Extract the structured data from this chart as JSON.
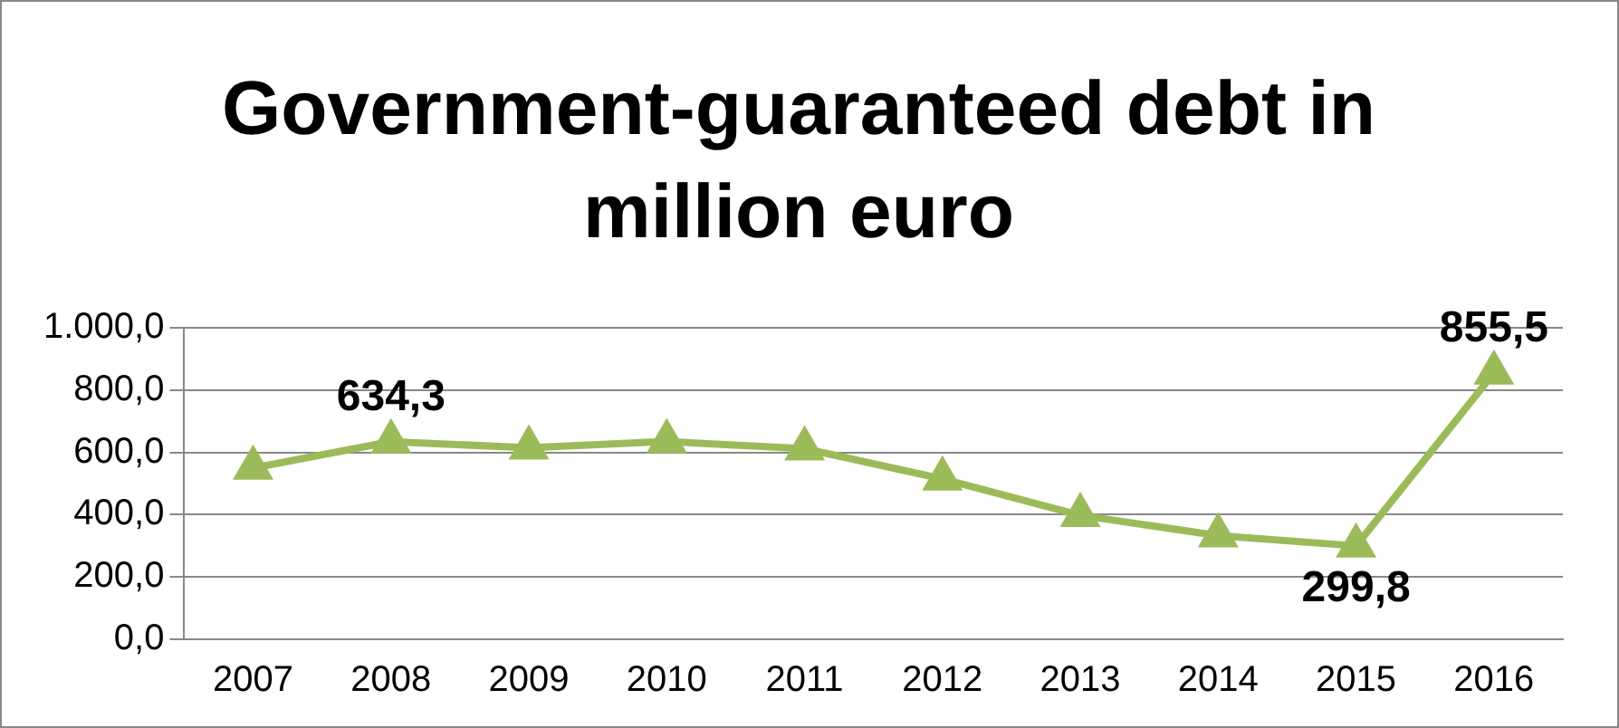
{
  "chart_data": {
    "type": "line",
    "title": "Government-guaranteed debt in million euro",
    "categories": [
      "2007",
      "2008",
      "2009",
      "2010",
      "2011",
      "2012",
      "2013",
      "2014",
      "2015",
      "2016"
    ],
    "series": [
      {
        "color": "#9bbb59",
        "values": [
          550,
          634.3,
          615,
          635,
          612,
          515,
          398,
          333,
          299.8,
          855.5
        ],
        "value_labels": [
          null,
          "634,3",
          null,
          null,
          null,
          null,
          null,
          null,
          "299,8",
          "855,5"
        ]
      }
    ],
    "ylim": [
      0,
      1000
    ],
    "yticks": [
      {
        "value": 0,
        "label": "0,0"
      },
      {
        "value": 200,
        "label": "200,0"
      },
      {
        "value": 400,
        "label": "400,0"
      },
      {
        "value": 600,
        "label": "600,0"
      },
      {
        "value": 800,
        "label": "800,0"
      },
      {
        "value": 1000,
        "label": "1.000,0"
      }
    ],
    "grid": "y",
    "legend": false,
    "marker": "triangle",
    "line_style": "solid"
  }
}
